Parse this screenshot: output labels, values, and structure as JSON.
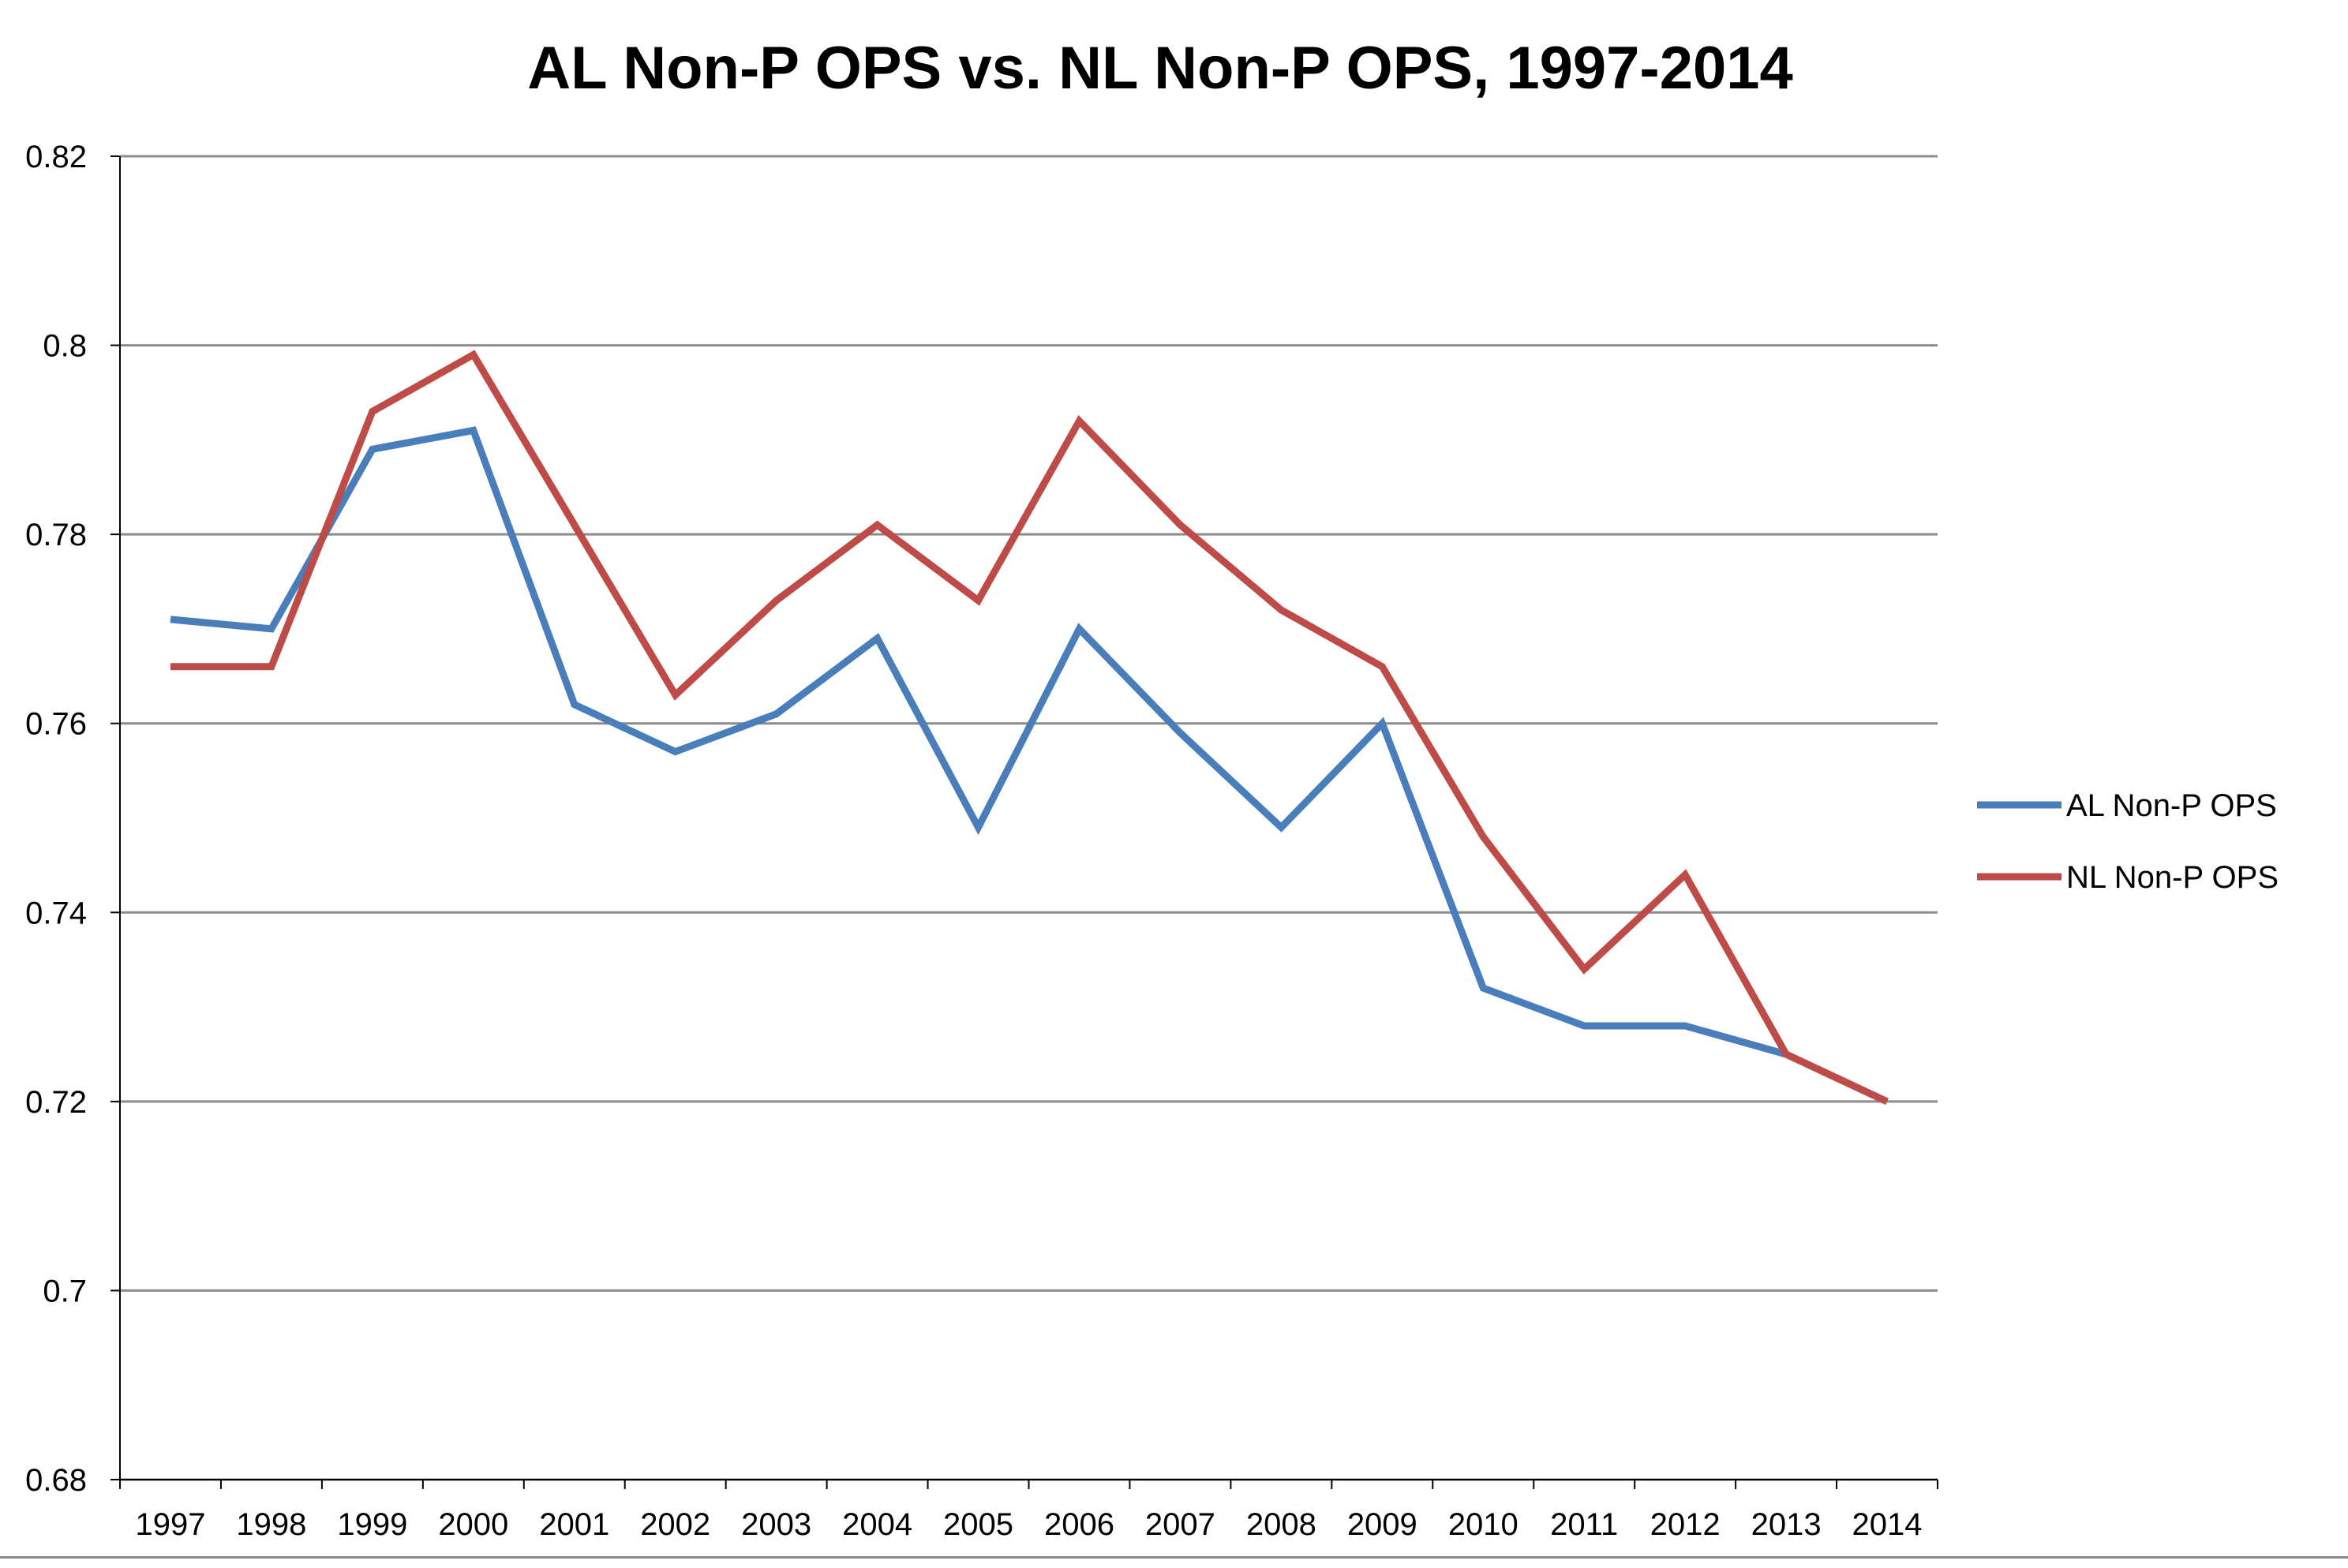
{
  "chart_data": {
    "type": "line",
    "title": "AL Non-P OPS vs. NL Non-P OPS, 1997-2014",
    "xlabel": "",
    "ylabel": "",
    "categories": [
      "1997",
      "1998",
      "1999",
      "2000",
      "2001",
      "2002",
      "2003",
      "2004",
      "2005",
      "2006",
      "2007",
      "2008",
      "2009",
      "2010",
      "2011",
      "2012",
      "2013",
      "2014"
    ],
    "ylim": [
      0.68,
      0.82
    ],
    "yticks": [
      0.68,
      0.7,
      0.72,
      0.74,
      0.76,
      0.78,
      0.8,
      0.82
    ],
    "ytick_labels": [
      "0.68",
      "0.7",
      "0.72",
      "0.74",
      "0.76",
      "0.78",
      "0.8",
      "0.82"
    ],
    "grid": true,
    "legend_position": "right",
    "series": [
      {
        "name": "AL Non-P OPS",
        "color": "#4a7ebb",
        "values": [
          0.771,
          0.77,
          0.789,
          0.791,
          0.762,
          0.757,
          0.761,
          0.769,
          0.749,
          0.77,
          0.759,
          0.749,
          0.76,
          0.732,
          0.728,
          0.728,
          0.725,
          0.72
        ]
      },
      {
        "name": "NL Non-P OPS",
        "color": "#be4b48",
        "values": [
          0.766,
          0.766,
          0.793,
          0.799,
          0.781,
          0.763,
          0.773,
          0.781,
          0.773,
          0.792,
          0.781,
          0.772,
          0.766,
          0.748,
          0.734,
          0.744,
          0.725,
          0.72
        ]
      }
    ]
  }
}
